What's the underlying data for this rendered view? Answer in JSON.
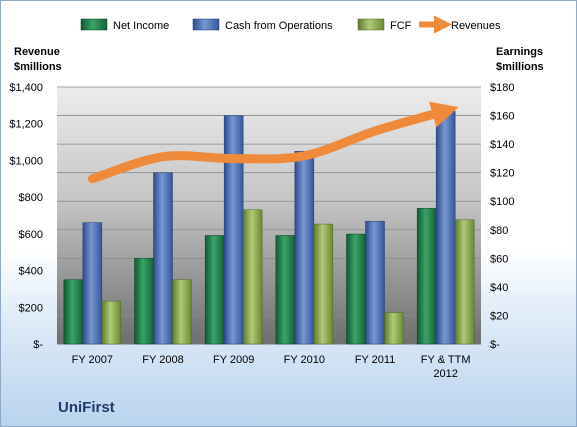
{
  "chart_data": {
    "type": "bar+line",
    "categories": [
      "FY 2007",
      "FY 2008",
      "FY 2009",
      "FY 2010",
      "FY 2011",
      "FY & TTM 2012"
    ],
    "series": [
      {
        "name": "Net Income",
        "axis": "right",
        "type": "bar",
        "color": "#2e8b57",
        "values": [
          45,
          60,
          76,
          76,
          77,
          95
        ]
      },
      {
        "name": "Cash from Operations",
        "axis": "right",
        "type": "bar",
        "color": "#5577bb",
        "values": [
          85,
          120,
          160,
          135,
          86,
          163
        ]
      },
      {
        "name": "FCF",
        "axis": "right",
        "type": "bar",
        "color": "#9ab860",
        "values": [
          30,
          45,
          94,
          84,
          22,
          87
        ]
      },
      {
        "name": "Revenues",
        "axis": "left",
        "type": "line",
        "color": "#ef8a3a",
        "values": [
          900,
          1020,
          1010,
          1025,
          1160,
          1270
        ]
      }
    ],
    "left_axis": {
      "title_lines": [
        "Revenue",
        "$millions"
      ],
      "ylim": [
        0,
        1400
      ],
      "tick_labels": [
        "$-",
        "$200",
        "$400",
        "$600",
        "$800",
        "$1,000",
        "$1,200",
        "$1,400"
      ]
    },
    "right_axis": {
      "title_lines": [
        "Earnings",
        "$millions"
      ],
      "ylim": [
        0,
        180
      ],
      "tick_labels": [
        "$-",
        "$20",
        "$40",
        "$60",
        "$80",
        "$100",
        "$120",
        "$140",
        "$160",
        "$180"
      ]
    },
    "category_label_lines": [
      [
        "FY 2007"
      ],
      [
        "FY 2008"
      ],
      [
        "FY 2009"
      ],
      [
        "FY 2010"
      ],
      [
        "FY 2011"
      ],
      [
        "FY & TTM",
        "2012"
      ]
    ],
    "legend_position": "top",
    "grid": true,
    "company": "UniFirst"
  }
}
